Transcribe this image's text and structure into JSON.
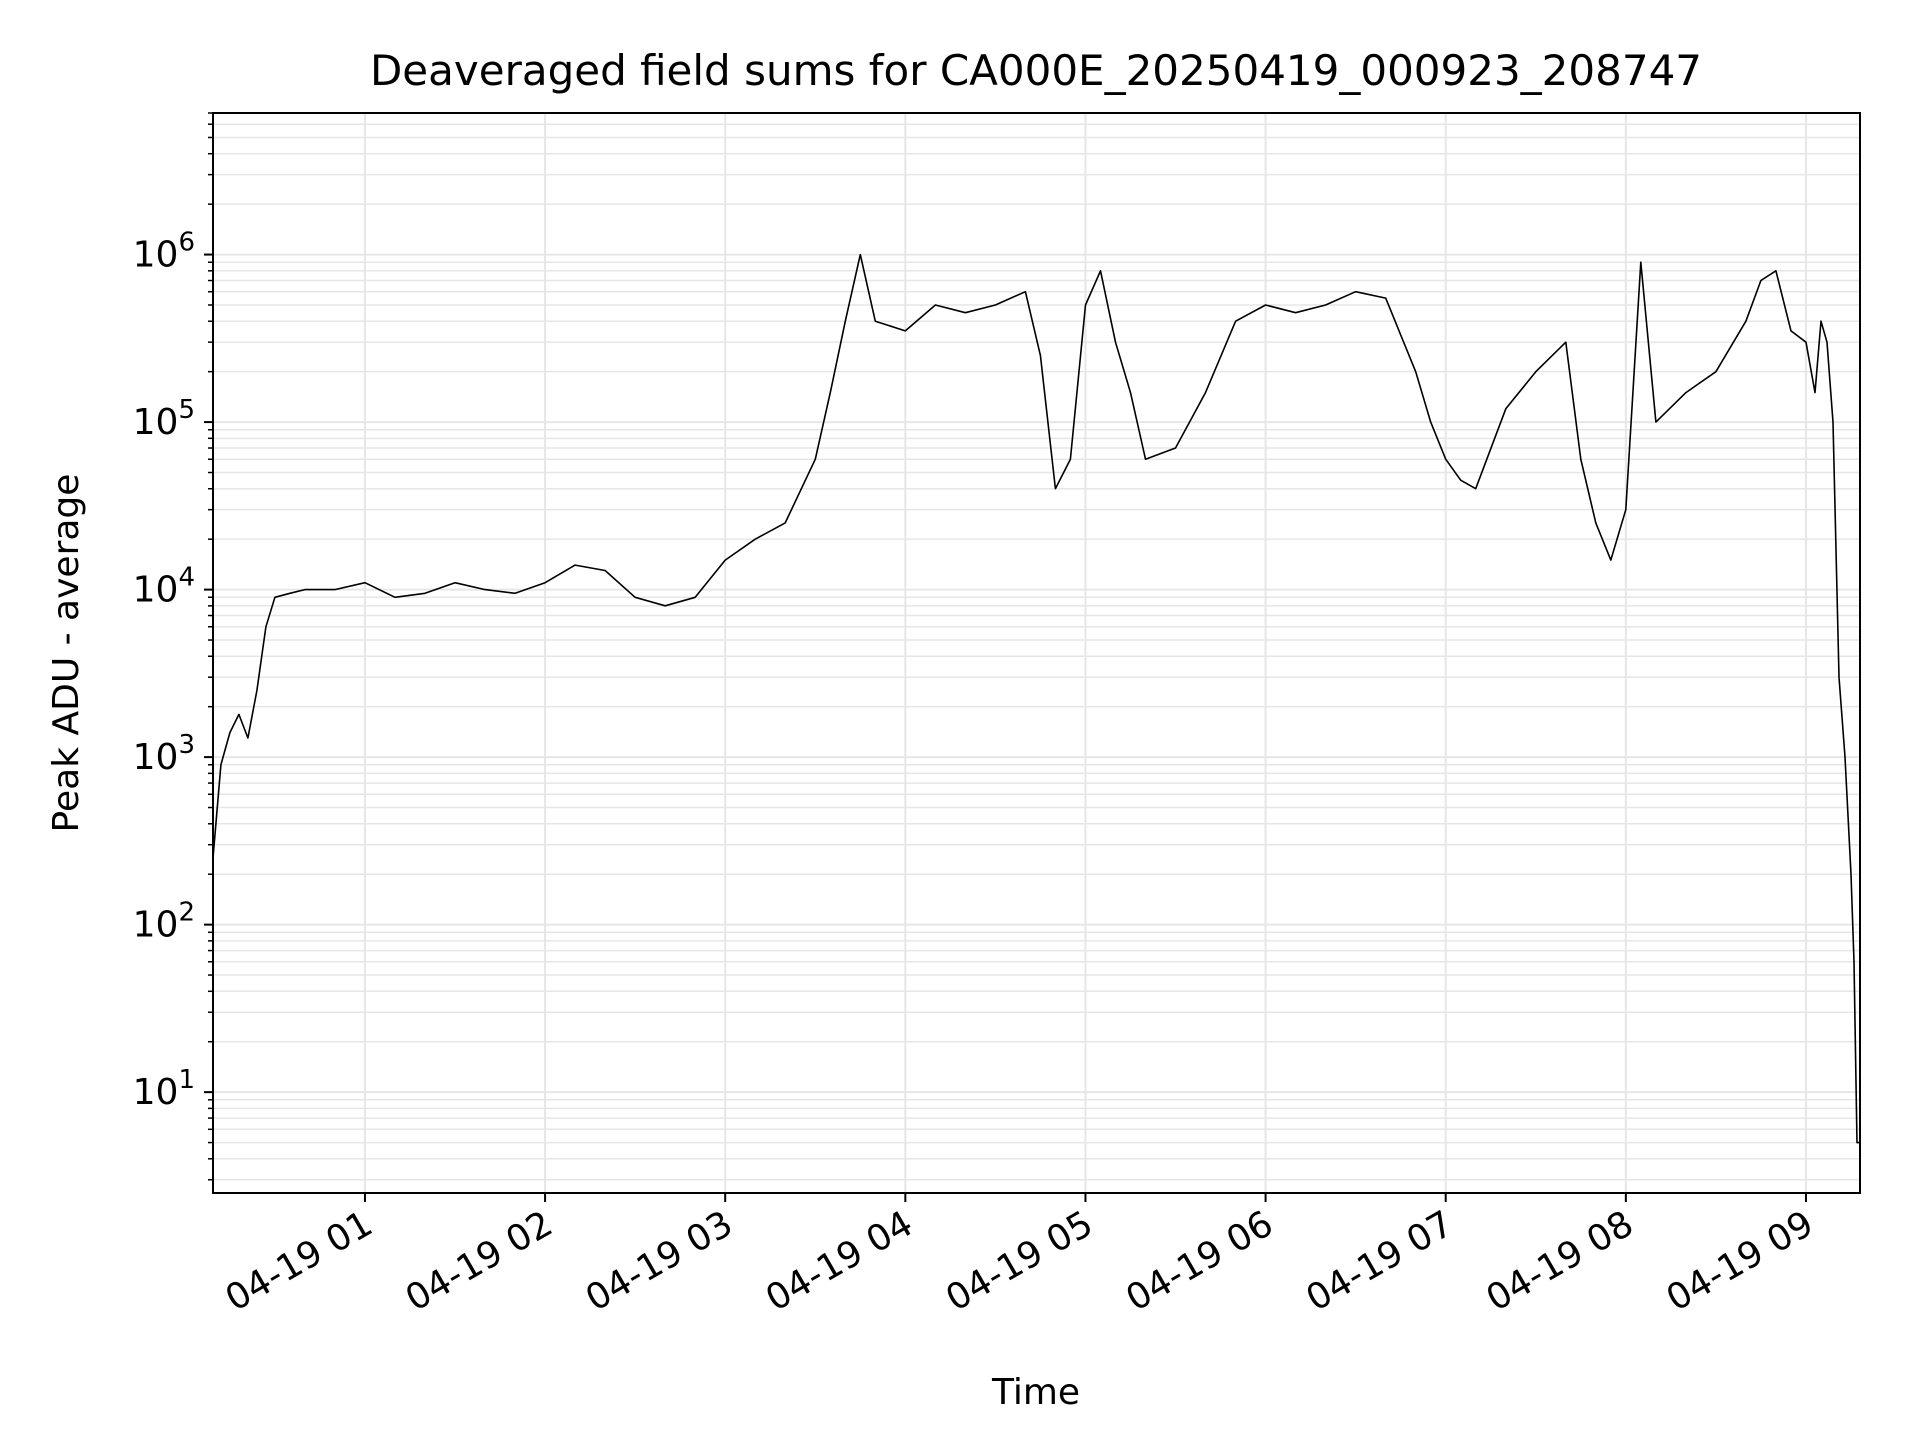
{
  "chart_data": {
    "type": "line",
    "title": "Deaveraged field sums for CA000E_20250419_000923_208747",
    "xlabel": "Time",
    "ylabel": "Peak ADU - average",
    "yscale": "log",
    "ylim": [
      2.5,
      7000000
    ],
    "xlim": [
      "2025-04-19 00:09:23",
      "2025-04-19 09:18:00"
    ],
    "x_ticks": [
      "04-19 01",
      "04-19 02",
      "04-19 03",
      "04-19 04",
      "04-19 05",
      "04-19 06",
      "04-19 07",
      "04-19 08",
      "04-19 09"
    ],
    "y_ticks": [
      {
        "value": 10,
        "base": "10",
        "exp": "1"
      },
      {
        "value": 100,
        "base": "10",
        "exp": "2"
      },
      {
        "value": 1000,
        "base": "10",
        "exp": "3"
      },
      {
        "value": 10000,
        "base": "10",
        "exp": "4"
      },
      {
        "value": 100000,
        "base": "10",
        "exp": "5"
      },
      {
        "value": 1000000,
        "base": "10",
        "exp": "6"
      }
    ],
    "grid": true,
    "line_color": "#000000",
    "grid_color": "#e6e6e6",
    "series": [
      {
        "x": [
          "2025-04-19 00:09:23",
          "2025-04-19 00:12",
          "2025-04-19 00:15",
          "2025-04-19 00:18",
          "2025-04-19 00:21",
          "2025-04-19 00:24",
          "2025-04-19 00:27",
          "2025-04-19 00:30",
          "2025-04-19 00:35",
          "2025-04-19 00:40",
          "2025-04-19 00:50",
          "2025-04-19 01:00",
          "2025-04-19 01:10",
          "2025-04-19 01:20",
          "2025-04-19 01:30",
          "2025-04-19 01:40",
          "2025-04-19 01:50",
          "2025-04-19 02:00",
          "2025-04-19 02:10",
          "2025-04-19 02:20",
          "2025-04-19 02:30",
          "2025-04-19 02:40",
          "2025-04-19 02:50",
          "2025-04-19 03:00",
          "2025-04-19 03:10",
          "2025-04-19 03:20",
          "2025-04-19 03:30",
          "2025-04-19 03:35",
          "2025-04-19 03:40",
          "2025-04-19 03:45",
          "2025-04-19 03:50",
          "2025-04-19 04:00",
          "2025-04-19 04:10",
          "2025-04-19 04:20",
          "2025-04-19 04:30",
          "2025-04-19 04:40",
          "2025-04-19 04:45",
          "2025-04-19 04:50",
          "2025-04-19 04:55",
          "2025-04-19 05:00",
          "2025-04-19 05:05",
          "2025-04-19 05:10",
          "2025-04-19 05:15",
          "2025-04-19 05:20",
          "2025-04-19 05:30",
          "2025-04-19 05:40",
          "2025-04-19 05:50",
          "2025-04-19 06:00",
          "2025-04-19 06:10",
          "2025-04-19 06:20",
          "2025-04-19 06:30",
          "2025-04-19 06:40",
          "2025-04-19 06:50",
          "2025-04-19 06:55",
          "2025-04-19 07:00",
          "2025-04-19 07:05",
          "2025-04-19 07:10",
          "2025-04-19 07:20",
          "2025-04-19 07:30",
          "2025-04-19 07:40",
          "2025-04-19 07:45",
          "2025-04-19 07:50",
          "2025-04-19 07:55",
          "2025-04-19 08:00",
          "2025-04-19 08:05",
          "2025-04-19 08:10",
          "2025-04-19 08:20",
          "2025-04-19 08:30",
          "2025-04-19 08:40",
          "2025-04-19 08:45",
          "2025-04-19 08:50",
          "2025-04-19 08:55",
          "2025-04-19 09:00",
          "2025-04-19 09:03",
          "2025-04-19 09:05",
          "2025-04-19 09:07",
          "2025-04-19 09:09",
          "2025-04-19 09:11",
          "2025-04-19 09:13",
          "2025-04-19 09:15",
          "2025-04-19 09:16",
          "2025-04-19 09:17",
          "2025-04-19 09:18"
        ],
        "y": [
          250,
          900,
          1400,
          1800,
          1300,
          2500,
          6000,
          9000,
          9500,
          10000,
          10000,
          11000,
          9000,
          9500,
          11000,
          10000,
          9500,
          11000,
          14000,
          13000,
          9000,
          8000,
          9000,
          15000,
          20000,
          25000,
          60000,
          150000,
          400000,
          1000000,
          400000,
          350000,
          500000,
          450000,
          500000,
          600000,
          250000,
          40000,
          60000,
          500000,
          800000,
          300000,
          150000,
          60000,
          70000,
          150000,
          400000,
          500000,
          450000,
          500000,
          600000,
          550000,
          200000,
          100000,
          60000,
          45000,
          40000,
          120000,
          200000,
          300000,
          60000,
          25000,
          15000,
          30000,
          900000,
          100000,
          150000,
          200000,
          400000,
          700000,
          800000,
          350000,
          300000,
          150000,
          400000,
          300000,
          100000,
          3000,
          1000,
          200,
          60,
          5,
          5
        ]
      }
    ]
  }
}
